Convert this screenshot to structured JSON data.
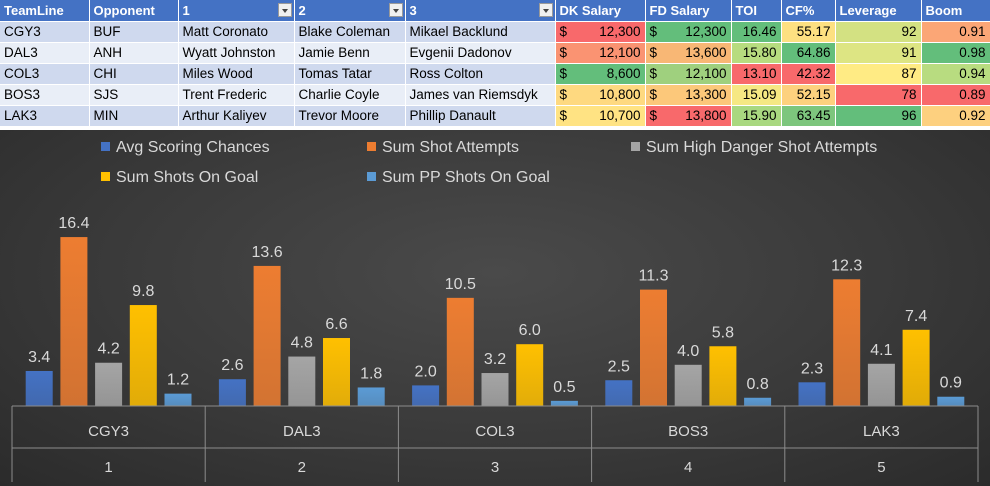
{
  "table": {
    "columns": [
      "TeamLine",
      "Opponent",
      "1",
      "2",
      "3",
      "DK Salary",
      "FD Salary",
      "TOI",
      "CF%",
      "Leverage",
      "Boom"
    ],
    "currency_symbol": "$",
    "rows": [
      {
        "teamline": "CGY3",
        "opponent": "BUF",
        "p1": "Matt Coronato",
        "p2": "Blake Coleman",
        "p3": "Mikael Backlund",
        "dk": "12,300",
        "fd": "12,300",
        "toi": "16.46",
        "cf": "55.17",
        "leverage": "92",
        "boom": "0.91"
      },
      {
        "teamline": "DAL3",
        "opponent": "ANH",
        "p1": "Wyatt Johnston",
        "p2": "Jamie Benn",
        "p3": "Evgenii Dadonov",
        "dk": "12,100",
        "fd": "13,600",
        "toi": "15.80",
        "cf": "64.86",
        "leverage": "91",
        "boom": "0.98"
      },
      {
        "teamline": "COL3",
        "opponent": "CHI",
        "p1": "Miles Wood",
        "p2": "Tomas Tatar",
        "p3": "Ross Colton",
        "dk": "8,600",
        "fd": "12,100",
        "toi": "13.10",
        "cf": "42.32",
        "leverage": "87",
        "boom": "0.94"
      },
      {
        "teamline": "BOS3",
        "opponent": "SJS",
        "p1": "Trent Frederic",
        "p2": "Charlie Coyle",
        "p3": "James van Riemsdyk",
        "dk": "10,800",
        "fd": "13,300",
        "toi": "15.09",
        "cf": "52.15",
        "leverage": "78",
        "boom": "0.89"
      },
      {
        "teamline": "LAK3",
        "opponent": "MIN",
        "p1": "Arthur Kaliyev",
        "p2": "Trevor Moore",
        "p3": "Phillip Danault",
        "dk": "10,700",
        "fd": "13,800",
        "toi": "15.90",
        "cf": "63.45",
        "leverage": "96",
        "boom": "0.92"
      }
    ],
    "heat_colors": {
      "dk": [
        "#f8696b",
        "#fa9372",
        "#63be7b",
        "#fed980",
        "#ffe383"
      ],
      "fd": [
        "#63be7b",
        "#f8b775",
        "#9fd07e",
        "#fcc87a",
        "#f8696b"
      ],
      "toi": [
        "#63be7b",
        "#b7dc7f",
        "#f8696b",
        "#f6e883",
        "#a9d880"
      ],
      "cf": [
        "#fde081",
        "#63be7b",
        "#f8696b",
        "#fdd17e",
        "#7dc67d"
      ],
      "leverage": [
        "#d3e182",
        "#dde583",
        "#ffeb84",
        "#f8696b",
        "#63be7b"
      ],
      "boom": [
        "#fba676",
        "#63be7b",
        "#b8dc80",
        "#f8696b",
        "#fdd07f"
      ]
    }
  },
  "chart_data": {
    "type": "bar",
    "categories": [
      "CGY3",
      "DAL3",
      "COL3",
      "BOS3",
      "LAK3"
    ],
    "category_index": [
      "1",
      "2",
      "3",
      "4",
      "5"
    ],
    "series": [
      {
        "name": "Avg Scoring Chances",
        "color": "#4472c4",
        "values": [
          3.4,
          2.6,
          2.0,
          2.5,
          2.3
        ]
      },
      {
        "name": "Sum Shot Attempts",
        "color": "#ed7d31",
        "values": [
          16.4,
          13.6,
          10.5,
          11.3,
          12.3
        ]
      },
      {
        "name": "Sum High Danger Shot Attempts",
        "color": "#a5a5a5",
        "values": [
          4.2,
          4.8,
          3.2,
          4.0,
          4.1
        ]
      },
      {
        "name": "Sum Shots On Goal",
        "color": "#ffc000",
        "values": [
          9.8,
          6.6,
          6.0,
          5.8,
          7.4
        ]
      },
      {
        "name": "Sum PP Shots On Goal",
        "color": "#5b9bd5",
        "values": [
          1.2,
          1.8,
          0.5,
          0.8,
          0.9
        ]
      }
    ],
    "ylim": [
      0,
      17
    ],
    "grid": false,
    "legend_position": "top",
    "data_labels": true
  }
}
